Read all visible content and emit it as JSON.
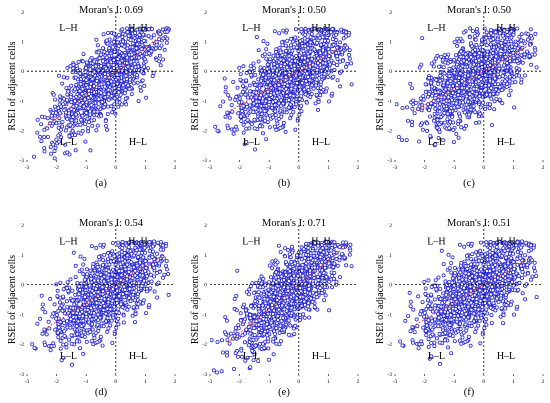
{
  "figure": {
    "ylabel": "RSEI of adjacent cells",
    "point_color": "#2b2bd6",
    "point_edge_color": "#1a1a9e",
    "point_fill_color": "#ffffff",
    "trend_color": "#d23a3a",
    "guide_color": "#000000"
  },
  "chart_data": [
    {
      "type": "scatter",
      "panel": "(a)",
      "title": "Moran's I: 0.69",
      "ylabel": "RSEI of adjacent cells",
      "xlim": [
        -3,
        2
      ],
      "ylim": [
        -3,
        2
      ],
      "xticks": [
        "-3",
        "-2",
        "-1",
        "0",
        "1",
        "2"
      ],
      "yticks": [
        "-3",
        "-2",
        "-1",
        "0",
        "1",
        "2"
      ],
      "moran_i": 0.69,
      "quadrants": {
        "HH": "H–H",
        "LH": "L–H",
        "LL": "L–L",
        "HL": "H–L"
      }
    },
    {
      "type": "scatter",
      "panel": "(b)",
      "title": "Moran's I: 0.50",
      "ylabel": "RSEI of adjacent cells",
      "xlim": [
        -3,
        2
      ],
      "ylim": [
        -3,
        2
      ],
      "xticks": [
        "-3",
        "-2",
        "-1",
        "0",
        "1",
        "2"
      ],
      "yticks": [
        "-3",
        "-2",
        "-1",
        "0",
        "1",
        "2"
      ],
      "moran_i": 0.5,
      "quadrants": {
        "HH": "H–H",
        "LH": "L–H",
        "LL": "L–L",
        "HL": "H–L"
      }
    },
    {
      "type": "scatter",
      "panel": "(c)",
      "title": "Moran's I: 0.50",
      "ylabel": "RSEI of adjacent cells",
      "xlim": [
        -3,
        2
      ],
      "ylim": [
        -3,
        2
      ],
      "xticks": [
        "-3",
        "-2",
        "-1",
        "0",
        "1",
        "2"
      ],
      "yticks": [
        "-3",
        "-2",
        "-1",
        "0",
        "1",
        "2"
      ],
      "moran_i": 0.5,
      "quadrants": {
        "HH": "H–H",
        "LH": "L–H",
        "LL": "L–L",
        "HL": "H–L"
      }
    },
    {
      "type": "scatter",
      "panel": "(d)",
      "title": "Moran's I: 0.54",
      "ylabel": "RSEI of adjacent cells",
      "xlim": [
        -3,
        2
      ],
      "ylim": [
        -3,
        2
      ],
      "xticks": [
        "-3",
        "-2",
        "-1",
        "0",
        "1",
        "2"
      ],
      "yticks": [
        "-3",
        "-2",
        "-1",
        "0",
        "1",
        "2"
      ],
      "moran_i": 0.54,
      "quadrants": {
        "HH": "H–H",
        "LH": "L–H",
        "LL": "L–L",
        "HL": "H–L"
      }
    },
    {
      "type": "scatter",
      "panel": "(e)",
      "title": "Moran's I: 0.71",
      "ylabel": "RSEI of adjacent cells",
      "xlim": [
        -3,
        2
      ],
      "ylim": [
        -3,
        2
      ],
      "xticks": [
        "-3",
        "-2",
        "-1",
        "0",
        "1",
        "2"
      ],
      "yticks": [
        "-3",
        "-2",
        "-1",
        "0",
        "1",
        "2"
      ],
      "moran_i": 0.71,
      "quadrants": {
        "HH": "H–H",
        "LH": "L–H",
        "LL": "L–L",
        "HL": "H–L"
      }
    },
    {
      "type": "scatter",
      "panel": "(f)",
      "title": "Moran's I: 0.51",
      "ylabel": "RSEI of adjacent cells",
      "xlim": [
        -3,
        2
      ],
      "ylim": [
        -3,
        2
      ],
      "xticks": [
        "-3",
        "-2",
        "-1",
        "0",
        "1",
        "2"
      ],
      "yticks": [
        "-3",
        "-2",
        "-1",
        "0",
        "1",
        "2"
      ],
      "moran_i": 0.51,
      "quadrants": {
        "HH": "H–H",
        "LH": "L–H",
        "LL": "L–L",
        "HL": "H–L"
      }
    }
  ]
}
